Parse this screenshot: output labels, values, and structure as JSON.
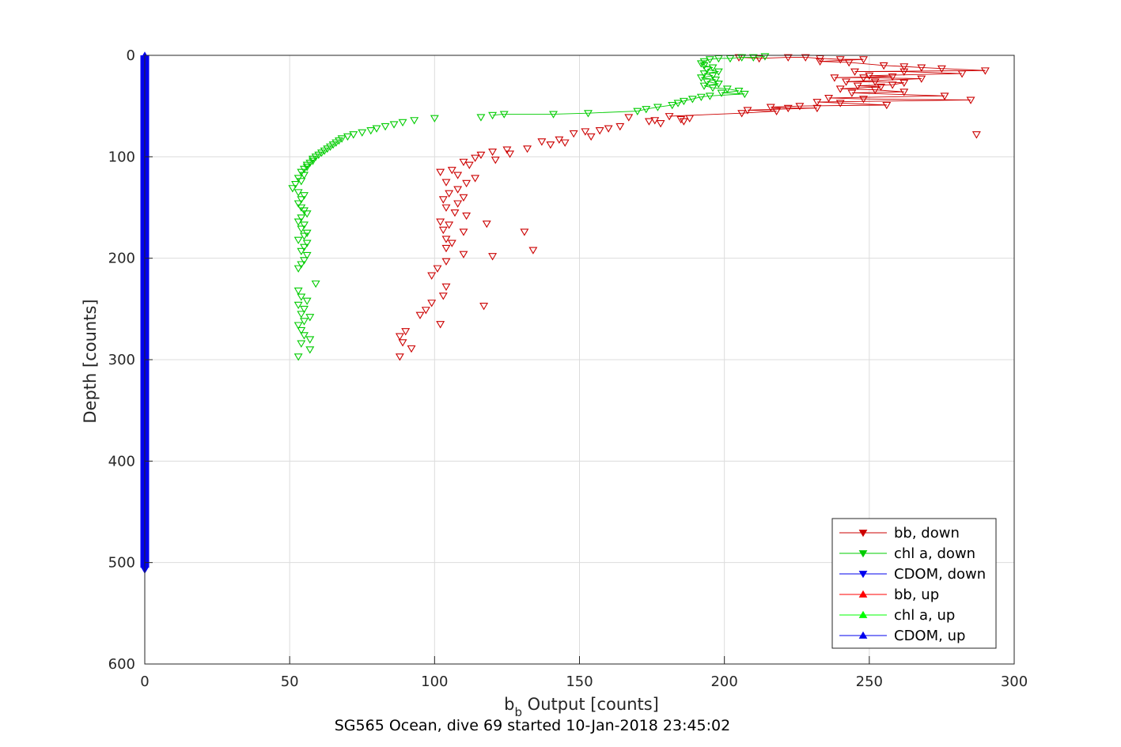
{
  "figure": {
    "xlabel_main": "b",
    "xlabel_sub": "b",
    "xlabel_rest": " Output [counts]",
    "ylabel": "Depth [counts]",
    "caption": "SG565 Ocean, dive 69 started 10-Jan-2018 23:45:02"
  },
  "chart_data": {
    "type": "scatter",
    "title": "",
    "xlabel": "b_b Output [counts]",
    "ylabel": "Depth [counts]",
    "xlim": [
      0,
      300
    ],
    "ylim": [
      0,
      600
    ],
    "y_reversed": true,
    "grid": true,
    "x_ticks": [
      0,
      50,
      100,
      150,
      200,
      250,
      300
    ],
    "y_ticks": [
      0,
      100,
      200,
      300,
      400,
      500,
      600
    ],
    "legend_position": "bottom-right",
    "series": [
      {
        "name": "bb, down",
        "color": "#cc0000",
        "marker": "triangle-down",
        "line": "partial",
        "points": [
          [
            205,
            2
          ],
          [
            212,
            3
          ],
          [
            222,
            2
          ],
          [
            228,
            2
          ],
          [
            233,
            3
          ],
          [
            240,
            4
          ],
          [
            248,
            4
          ],
          [
            233,
            6
          ],
          [
            243,
            7
          ],
          [
            255,
            10
          ],
          [
            262,
            11
          ],
          [
            268,
            12
          ],
          [
            275,
            13
          ],
          [
            290,
            15
          ],
          [
            245,
            16
          ],
          [
            262,
            16
          ],
          [
            282,
            18
          ],
          [
            250,
            20
          ],
          [
            258,
            21
          ],
          [
            238,
            22
          ],
          [
            248,
            22
          ],
          [
            268,
            23
          ],
          [
            242,
            26
          ],
          [
            252,
            26
          ],
          [
            262,
            27
          ],
          [
            258,
            29
          ],
          [
            246,
            30
          ],
          [
            254,
            31
          ],
          [
            240,
            33
          ],
          [
            252,
            34
          ],
          [
            262,
            36
          ],
          [
            244,
            37
          ],
          [
            276,
            40
          ],
          [
            236,
            42
          ],
          [
            248,
            43
          ],
          [
            285,
            44
          ],
          [
            232,
            46
          ],
          [
            240,
            47
          ],
          [
            256,
            49
          ],
          [
            226,
            50
          ],
          [
            216,
            51
          ],
          [
            222,
            52
          ],
          [
            232,
            52
          ],
          [
            208,
            54
          ],
          [
            218,
            55
          ],
          [
            206,
            57
          ],
          [
            167,
            61
          ],
          [
            181,
            60
          ],
          [
            188,
            62
          ],
          [
            185,
            63
          ],
          [
            176,
            64
          ],
          [
            174,
            65
          ],
          [
            178,
            67
          ],
          [
            164,
            70
          ],
          [
            160,
            72
          ],
          [
            157,
            74
          ],
          [
            152,
            75
          ],
          [
            148,
            77
          ],
          [
            154,
            80
          ],
          [
            143,
            83
          ],
          [
            137,
            85
          ],
          [
            145,
            86
          ],
          [
            140,
            88
          ],
          [
            132,
            92
          ],
          [
            125,
            93
          ],
          [
            120,
            95
          ],
          [
            126,
            97
          ],
          [
            116,
            98
          ],
          [
            114,
            101
          ],
          [
            121,
            103
          ],
          [
            110,
            105
          ],
          [
            112,
            108
          ],
          [
            106,
            113
          ],
          [
            102,
            115
          ],
          [
            108,
            118
          ],
          [
            114,
            121
          ],
          [
            104,
            125
          ],
          [
            111,
            126
          ],
          [
            108,
            132
          ],
          [
            105,
            136
          ],
          [
            110,
            140
          ],
          [
            103,
            142
          ],
          [
            108,
            146
          ],
          [
            104,
            150
          ],
          [
            107,
            155
          ],
          [
            111,
            158
          ],
          [
            102,
            164
          ],
          [
            105,
            167
          ],
          [
            103,
            172
          ],
          [
            110,
            174
          ],
          [
            104,
            181
          ],
          [
            106,
            185
          ],
          [
            104,
            190
          ],
          [
            110,
            196
          ],
          [
            104,
            203
          ],
          [
            101,
            210
          ],
          [
            99,
            217
          ],
          [
            104,
            228
          ],
          [
            103,
            237
          ],
          [
            99,
            244
          ],
          [
            97,
            251
          ],
          [
            95,
            256
          ],
          [
            102,
            265
          ],
          [
            90,
            272
          ],
          [
            88,
            277
          ],
          [
            89,
            283
          ],
          [
            92,
            289
          ],
          [
            88,
            297
          ],
          [
            186,
            65
          ],
          [
            131,
            174
          ],
          [
            134,
            192
          ],
          [
            120,
            198
          ],
          [
            118,
            166
          ],
          [
            117,
            247
          ],
          [
            287,
            78
          ]
        ]
      },
      {
        "name": "chl a, down",
        "color": "#00cc00",
        "marker": "triangle-down",
        "line": "partial",
        "points": [
          [
            214,
            1
          ],
          [
            210,
            2
          ],
          [
            206,
            2
          ],
          [
            202,
            3
          ],
          [
            198,
            3
          ],
          [
            195,
            4
          ],
          [
            193,
            6
          ],
          [
            192,
            8
          ],
          [
            193,
            10
          ],
          [
            196,
            12
          ],
          [
            194,
            14
          ],
          [
            198,
            16
          ],
          [
            193,
            18
          ],
          [
            196,
            20
          ],
          [
            192,
            22
          ],
          [
            197,
            24
          ],
          [
            194,
            26
          ],
          [
            198,
            28
          ],
          [
            193,
            30
          ],
          [
            196,
            32
          ],
          [
            201,
            33
          ],
          [
            205,
            35
          ],
          [
            199,
            37
          ],
          [
            207,
            38
          ],
          [
            195,
            40
          ],
          [
            192,
            41
          ],
          [
            189,
            43
          ],
          [
            186,
            45
          ],
          [
            184,
            47
          ],
          [
            182,
            49
          ],
          [
            177,
            51
          ],
          [
            173,
            53
          ],
          [
            170,
            55
          ],
          [
            153,
            57
          ],
          [
            141,
            58
          ],
          [
            124,
            58
          ],
          [
            120,
            59
          ],
          [
            116,
            61
          ],
          [
            100,
            62
          ],
          [
            93,
            64
          ],
          [
            89,
            66
          ],
          [
            86,
            68
          ],
          [
            83,
            70
          ],
          [
            80,
            72
          ],
          [
            78,
            74
          ],
          [
            75,
            76
          ],
          [
            72,
            78
          ],
          [
            70,
            80
          ],
          [
            68,
            82
          ],
          [
            67,
            84
          ],
          [
            66,
            86
          ],
          [
            65,
            88
          ],
          [
            64,
            90
          ],
          [
            63,
            92
          ],
          [
            62,
            94
          ],
          [
            61,
            96
          ],
          [
            60,
            98
          ],
          [
            59,
            100
          ],
          [
            58,
            102
          ],
          [
            58,
            104
          ],
          [
            57,
            106
          ],
          [
            56,
            108
          ],
          [
            56,
            110
          ],
          [
            55,
            112
          ],
          [
            54,
            115
          ],
          [
            55,
            118
          ],
          [
            53,
            121
          ],
          [
            54,
            124
          ],
          [
            52,
            127
          ],
          [
            51,
            131
          ],
          [
            53,
            135
          ],
          [
            55,
            138
          ],
          [
            54,
            142
          ],
          [
            53,
            146
          ],
          [
            54,
            150
          ],
          [
            55,
            153
          ],
          [
            56,
            156
          ],
          [
            54,
            160
          ],
          [
            53,
            164
          ],
          [
            55,
            167
          ],
          [
            54,
            171
          ],
          [
            56,
            175
          ],
          [
            55,
            178
          ],
          [
            53,
            182
          ],
          [
            56,
            185
          ],
          [
            55,
            189
          ],
          [
            54,
            193
          ],
          [
            56,
            197
          ],
          [
            55,
            202
          ],
          [
            54,
            206
          ],
          [
            53,
            210
          ],
          [
            59,
            225
          ],
          [
            53,
            232
          ],
          [
            54,
            238
          ],
          [
            56,
            242
          ],
          [
            53,
            246
          ],
          [
            55,
            250
          ],
          [
            54,
            255
          ],
          [
            57,
            258
          ],
          [
            55,
            262
          ],
          [
            53,
            266
          ],
          [
            54,
            271
          ],
          [
            55,
            276
          ],
          [
            57,
            280
          ],
          [
            54,
            284
          ],
          [
            57,
            290
          ],
          [
            53,
            297
          ]
        ]
      },
      {
        "name": "CDOM, down",
        "color": "#0000ee",
        "marker": "triangle-down",
        "line": "solid",
        "x_value": 0,
        "depth_range": [
          0,
          505
        ]
      },
      {
        "name": "bb, up",
        "color": "#ff0000",
        "marker": "triangle-up",
        "line": "solid",
        "points": []
      },
      {
        "name": "chl a, up",
        "color": "#00ff00",
        "marker": "triangle-up",
        "line": "solid",
        "points": []
      },
      {
        "name": "CDOM, up",
        "color": "#0000ee",
        "marker": "triangle-up",
        "line": "solid",
        "x_value": 0,
        "depth_range": [
          0,
          505
        ]
      }
    ]
  }
}
